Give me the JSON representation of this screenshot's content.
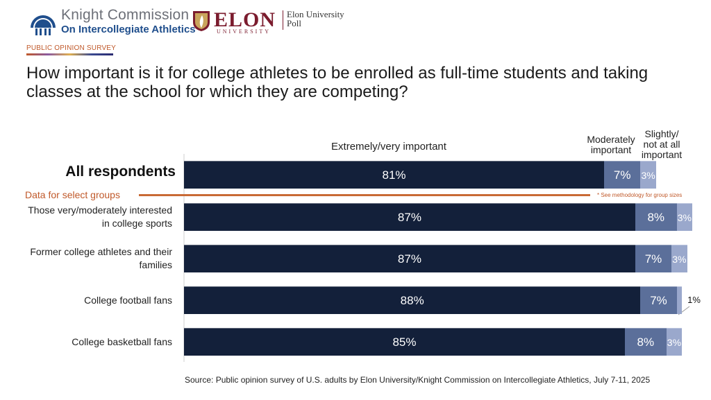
{
  "logos": {
    "knight_line1": "Knight Commission",
    "knight_line2": "On Intercollegiate Athletics",
    "knight_icon": "dome-building-icon",
    "elon_wordmark": "ELON",
    "elon_sub": "UNIVERSITY",
    "elon_icon": "shield-leaf-icon",
    "elon_poll_line1": "Elon University",
    "elon_poll_line2": "Poll"
  },
  "tag": "PUBLIC OPINION SURVEY",
  "title": "How important is it for college athletes to be enrolled as full-time students and taking classes at the school for which they are competing?",
  "select_groups_label": "Data for select groups",
  "methodology_note": "* See methodology for group sizes",
  "source": "Source: Public opinion survey of U.S. adults by Elon University/Knight Commission on Intercollegiate Athletics, July 7-11, 2025",
  "colors": {
    "extremely": "#13203a",
    "moderately": "#5b6f9a",
    "slightly": "#9aa8cc",
    "accent": "#c96a35"
  },
  "chart_data": {
    "type": "bar",
    "orientation": "horizontal-stacked",
    "title": "How important is it for college athletes to be enrolled as full-time students and taking classes at the school for which they are competing?",
    "categories": [
      "All respondents",
      "Those very/moderately interested in college sports",
      "Former college athletes and their families",
      "College football fans",
      "College basketball fans"
    ],
    "series": [
      {
        "name": "Extremely/very important",
        "values": [
          81,
          87,
          87,
          88,
          85
        ]
      },
      {
        "name": "Moderately important",
        "values": [
          7,
          8,
          7,
          7,
          8
        ]
      },
      {
        "name": "Slightly/ not at all important",
        "values": [
          3,
          3,
          3,
          1,
          3
        ]
      }
    ],
    "value_labels": [
      [
        "81%",
        "7%",
        "3%"
      ],
      [
        "87%",
        "8%",
        "3%"
      ],
      [
        "87%",
        "7%",
        "3%"
      ],
      [
        "88%",
        "7%",
        "1%"
      ],
      [
        "85%",
        "8%",
        "3%"
      ]
    ],
    "xlim": [
      0,
      100
    ],
    "xlabel": "",
    "ylabel": "",
    "legend": "column headers above bars",
    "grid": false
  }
}
